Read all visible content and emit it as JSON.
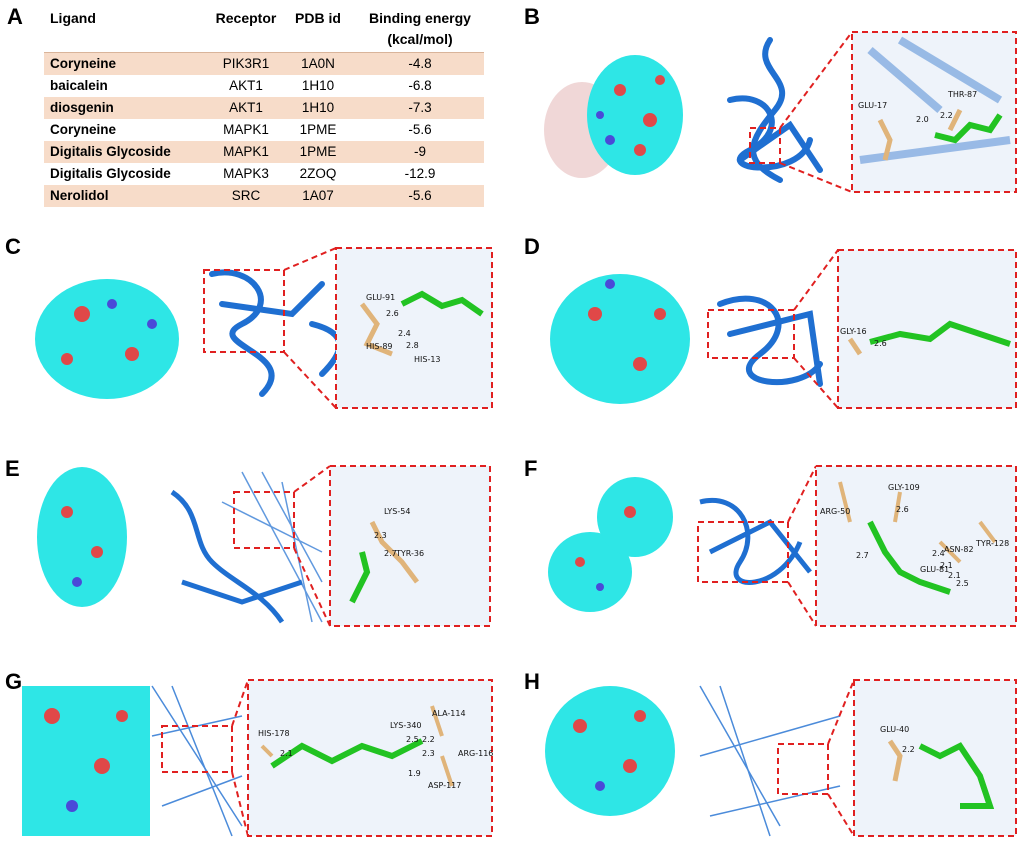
{
  "panel_letters": [
    "A",
    "B",
    "C",
    "D",
    "E",
    "F",
    "G",
    "H"
  ],
  "table": {
    "headers": [
      "Ligand",
      "Receptor",
      "PDB id",
      "Binding energy",
      "(kcal/mol)"
    ],
    "rows": [
      {
        "ligand": "Coryneine",
        "receptor": "PIK3R1",
        "pdb": "1A0N",
        "energy": "-4.8"
      },
      {
        "ligand": "baicalein",
        "receptor": "AKT1",
        "pdb": "1H10",
        "energy": "-6.8"
      },
      {
        "ligand": "diosgenin",
        "receptor": "AKT1",
        "pdb": "1H10",
        "energy": "-7.3"
      },
      {
        "ligand": "Coryneine",
        "receptor": "MAPK1",
        "pdb": "1PME",
        "energy": "-5.6"
      },
      {
        "ligand": "Digitalis Glycoside",
        "receptor": "MAPK1",
        "pdb": "1PME",
        "energy": "-9"
      },
      {
        "ligand": "Digitalis Glycoside",
        "receptor": "MAPK3",
        "pdb": "2ZOQ",
        "energy": "-12.9"
      },
      {
        "ligand": "Nerolidol",
        "receptor": "SRC",
        "pdb": "1A07",
        "energy": "-5.6"
      }
    ]
  },
  "panels": {
    "B": {
      "labels": [
        "GLU-17",
        "THR-87",
        "2.0",
        "2.2"
      ]
    },
    "C": {
      "labels": [
        "GLU-91",
        "2.6",
        "2.4",
        "HIS-89",
        "2.8",
        "HIS-13"
      ]
    },
    "D": {
      "labels": [
        "GLY-16",
        "2.6"
      ]
    },
    "E": {
      "labels": [
        "LYS-54",
        "2.3",
        "2.7",
        "TYR-36"
      ]
    },
    "F": {
      "labels": [
        "GLY-109",
        "ARG-50",
        "2.6",
        "2.7",
        "2.4",
        "ASN-82",
        "TYR-128",
        "2.1",
        "GLU-81",
        "2.1",
        "2.5"
      ]
    },
    "G": {
      "labels": [
        "LYS-340",
        "ALA-114",
        "HIS-178",
        "2.5",
        "2.2",
        "ARG-116",
        "2.1",
        "2.3",
        "1.9",
        "ASP-117"
      ]
    },
    "H": {
      "labels": [
        "GLU-40",
        "2.2"
      ]
    }
  },
  "colors": {
    "surface": "#2ee6e6",
    "oxygen": "#e04848",
    "nitrogen": "#4a4ad8",
    "ribbon": "#1f6fd1",
    "ribbon_light": "#8fb4e3",
    "residue": "#e0b47a",
    "ligand": "#22c322",
    "box": "#e02020",
    "row_shade": "#f7dcc9"
  }
}
